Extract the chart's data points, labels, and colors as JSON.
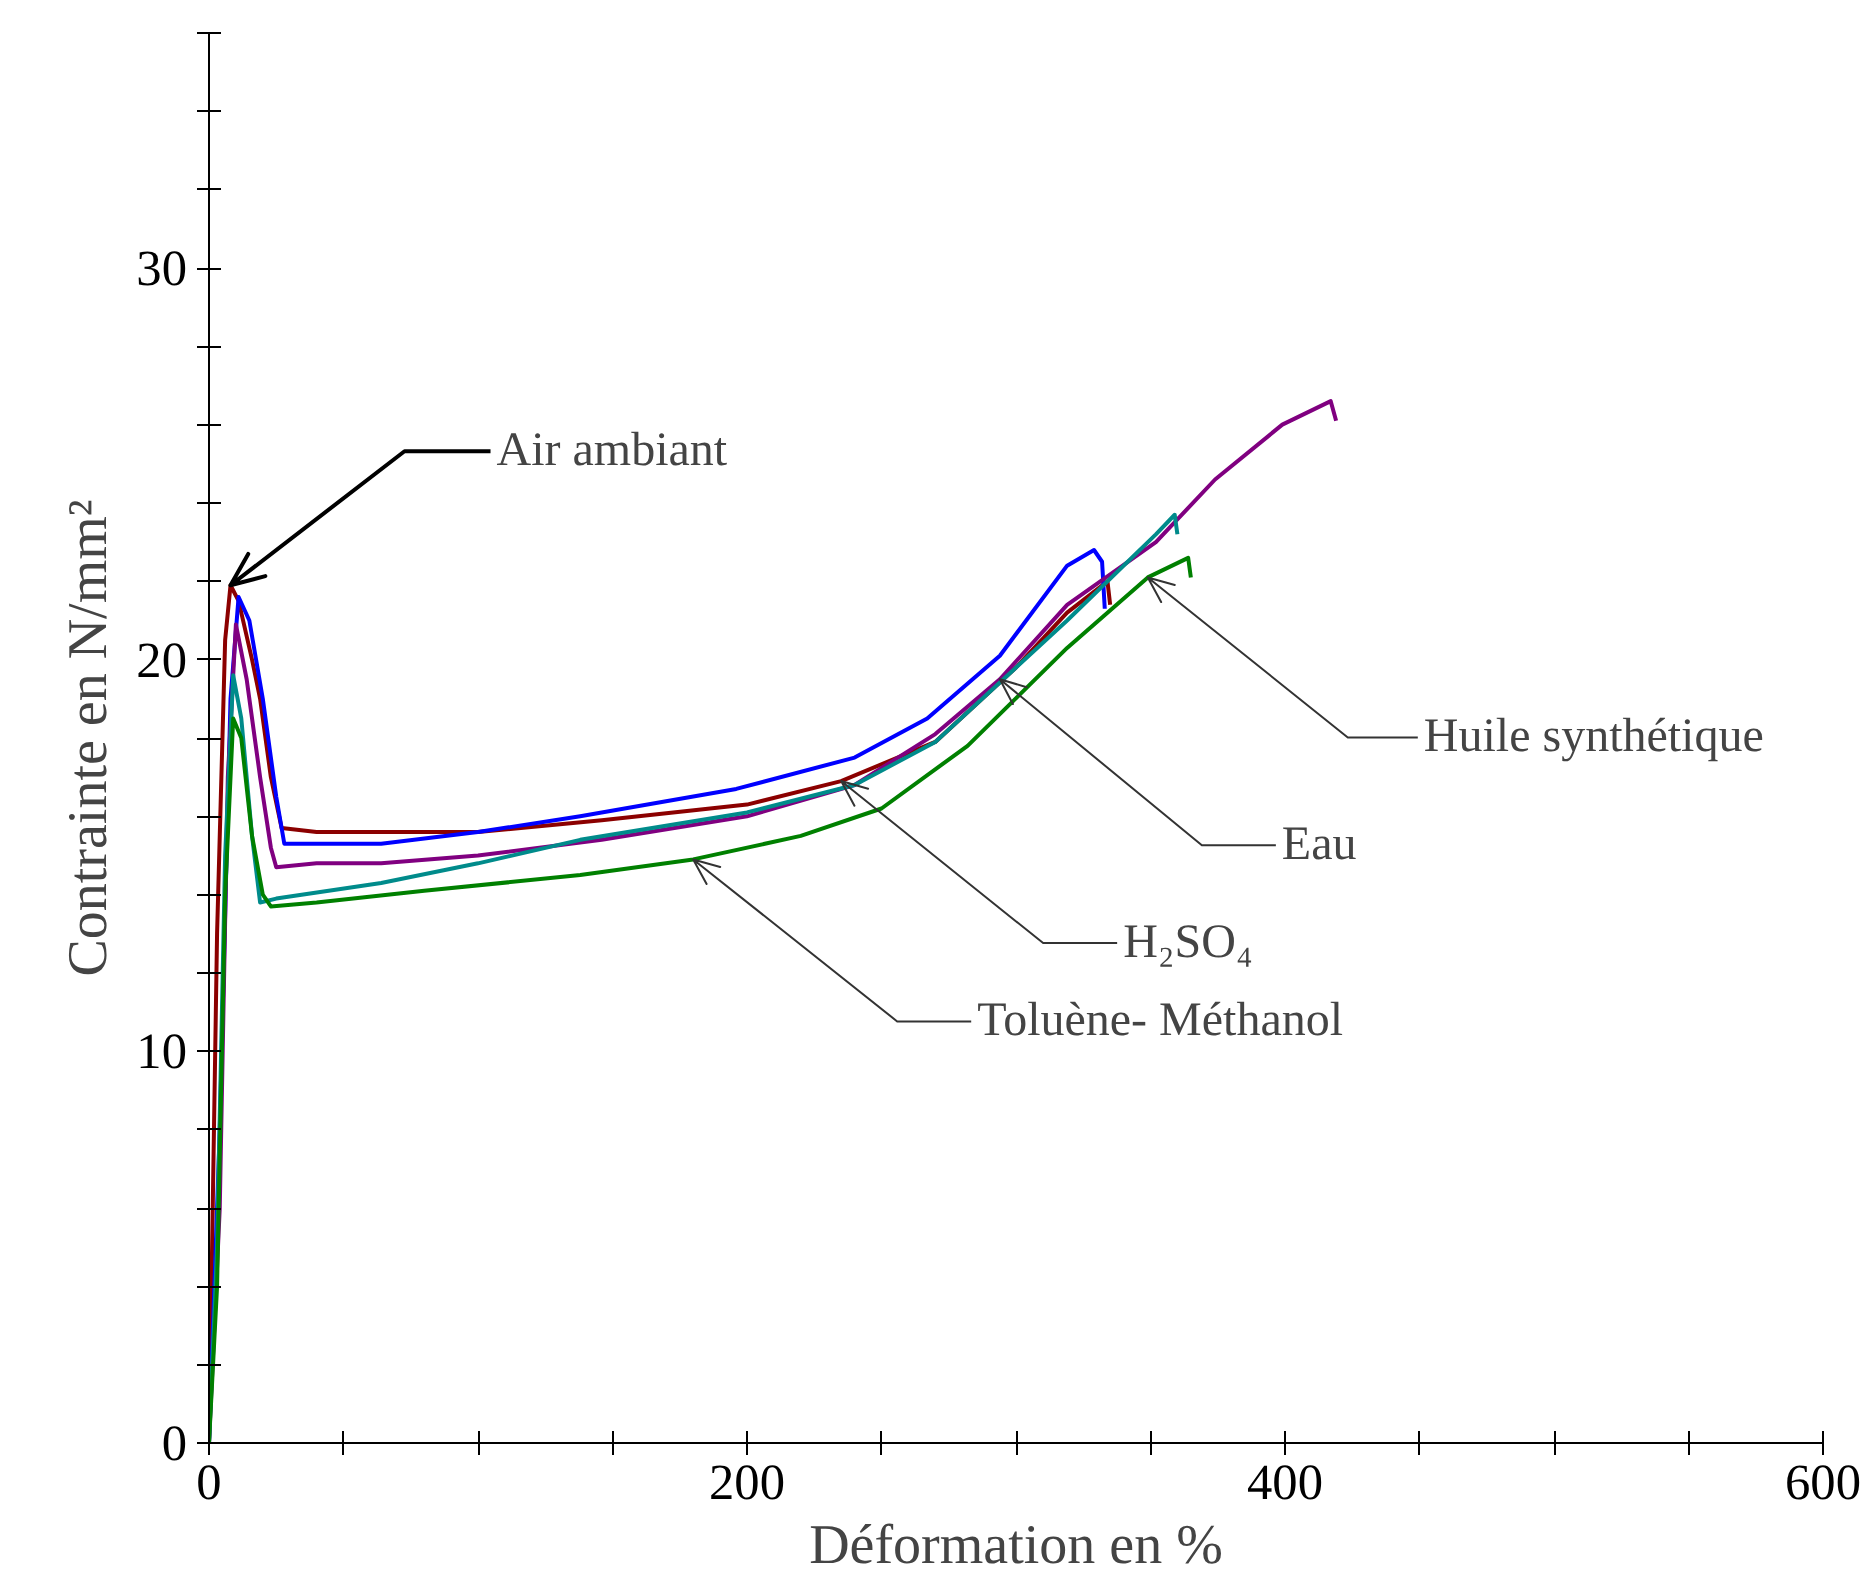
{
  "chart_data": {
    "type": "line",
    "xlabel": "Déformation en %",
    "ylabel": "Contrainte en N/mm²",
    "xlim": [
      0,
      600
    ],
    "ylim": [
      0,
      36
    ],
    "xticks": [
      0,
      {
        "value": 50,
        "label": null
      },
      {
        "value": 100,
        "label": null
      },
      {
        "value": 150,
        "label": null
      },
      200,
      {
        "value": 250,
        "label": null
      },
      {
        "value": 300,
        "label": null
      },
      {
        "value": 350,
        "label": null
      },
      400,
      {
        "value": 450,
        "label": null
      },
      {
        "value": 500,
        "label": null
      },
      {
        "value": 550,
        "label": null
      },
      600
    ],
    "yticks": [
      0,
      {
        "value": 2,
        "label": null
      },
      {
        "value": 4,
        "label": null
      },
      {
        "value": 6,
        "label": null
      },
      {
        "value": 8,
        "label": null
      },
      10,
      {
        "value": 12,
        "label": null
      },
      {
        "value": 14,
        "label": null
      },
      {
        "value": 16,
        "label": null
      },
      {
        "value": 18,
        "label": null
      },
      20,
      {
        "value": 22,
        "label": null
      },
      {
        "value": 24,
        "label": null
      },
      {
        "value": 26,
        "label": null
      },
      {
        "value": 28,
        "label": null
      },
      30,
      {
        "value": 32,
        "label": null
      },
      {
        "value": 34,
        "label": null
      },
      {
        "value": 36,
        "label": null
      }
    ],
    "grid": false,
    "marker": "none",
    "line_style": "solid",
    "series": [
      {
        "color": "#8b0000",
        "x": [
          0,
          3,
          6,
          8,
          11,
          16,
          19,
          23,
          27,
          40,
          70,
          100,
          146,
          200,
          235,
          270,
          300,
          319,
          334,
          335
        ],
        "values": [
          0,
          13,
          20.5,
          21.9,
          21.5,
          20,
          19,
          17,
          15.7,
          15.6,
          15.6,
          15.6,
          15.9,
          16.3,
          16.9,
          17.9,
          19.8,
          21.2,
          22,
          21.4
        ]
      },
      {
        "color": "#0000ff",
        "x": [
          0,
          4,
          8,
          11,
          15,
          20,
          25,
          28,
          40,
          64,
          100,
          138,
          196,
          240,
          267,
          294,
          319,
          329,
          332,
          333
        ],
        "values": [
          0,
          8,
          19,
          21.6,
          21,
          19,
          16.5,
          15.3,
          15.3,
          15.3,
          15.6,
          16,
          16.7,
          17.5,
          18.5,
          20.1,
          22.4,
          22.8,
          22.5,
          21.3
        ]
      },
      {
        "color": "#800080",
        "x": [
          0,
          4,
          7,
          10,
          14,
          19,
          23,
          25,
          40,
          64,
          100,
          146,
          200,
          240,
          270,
          294,
          319,
          352,
          374,
          399,
          417,
          419
        ],
        "values": [
          0,
          6,
          17,
          20.9,
          19.5,
          17,
          15.2,
          14.7,
          14.8,
          14.8,
          15,
          15.4,
          16,
          16.8,
          18.1,
          19.5,
          21.4,
          23,
          24.6,
          26,
          26.6,
          26.1
        ]
      },
      {
        "color": "#008b8b",
        "x": [
          0,
          3,
          6,
          9,
          12,
          16,
          19,
          25,
          64,
          100,
          138,
          200,
          240,
          270,
          319,
          352,
          359,
          360
        ],
        "values": [
          0,
          5,
          15,
          19.6,
          18.5,
          15.5,
          13.8,
          13.9,
          14.3,
          14.8,
          15.4,
          16.1,
          16.8,
          17.9,
          21,
          23.2,
          23.7,
          23.2
        ]
      },
      {
        "color": "#008000",
        "x": [
          0,
          3,
          6,
          9,
          12,
          16,
          20,
          23,
          40,
          80,
          138,
          180,
          220,
          250,
          282,
          319,
          349,
          364,
          365
        ],
        "values": [
          0,
          4,
          14,
          18.5,
          18,
          15.5,
          14,
          13.7,
          13.8,
          14.1,
          14.5,
          14.9,
          15.5,
          16.2,
          17.8,
          20.3,
          22.1,
          22.6,
          22.1
        ]
      }
    ],
    "annotations": [
      {
        "text": "Air ambiant",
        "x": 8,
        "y": 21.9
      },
      {
        "text": "Huile synthétique",
        "x": 349,
        "y": 22.1
      },
      {
        "text": "Eau",
        "x": 294,
        "y": 19.5
      },
      {
        "text": "H₂SO₄",
        "x": 235,
        "y": 16.9
      },
      {
        "text": "Toluène- Méthanol",
        "x": 180,
        "y": 14.9
      }
    ]
  }
}
